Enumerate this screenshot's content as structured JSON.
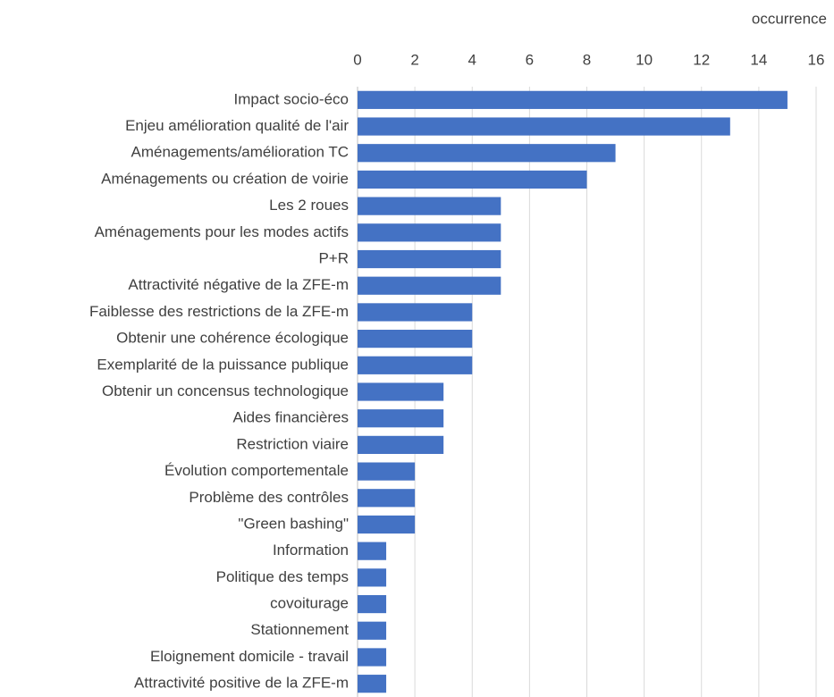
{
  "chart_data": {
    "type": "bar",
    "orientation": "horizontal",
    "x_label": "occurrence",
    "categories": [
      "Impact socio-éco",
      "Enjeu amélioration qualité de l'air",
      "Aménagements/amélioration TC",
      "Aménagements ou création de voirie",
      "Les 2 roues",
      "Aménagements pour les modes actifs",
      "P+R",
      "Attractivité négative de la ZFE-m",
      "Faiblesse des restrictions de la ZFE-m",
      "Obtenir une cohérence écologique",
      "Exemplarité de la puissance publique",
      "Obtenir un concensus technologique",
      "Aides financières",
      "Restriction viaire",
      "Évolution comportementale",
      "Problème des contrôles",
      "\"Green bashing\"",
      "Information",
      "Politique des temps",
      "covoiturage",
      "Stationnement",
      "Eloignement domicile - travail",
      "Attractivité positive de la ZFE-m"
    ],
    "values": [
      15,
      13,
      9,
      8,
      5,
      5,
      5,
      5,
      4,
      4,
      4,
      3,
      3,
      3,
      2,
      2,
      2,
      1,
      1,
      1,
      1,
      1,
      1
    ],
    "color": "#4472c4",
    "xlim": [
      0,
      16
    ],
    "xticks": [
      0,
      2,
      4,
      6,
      8,
      10,
      12,
      14,
      16
    ],
    "grid": true
  }
}
